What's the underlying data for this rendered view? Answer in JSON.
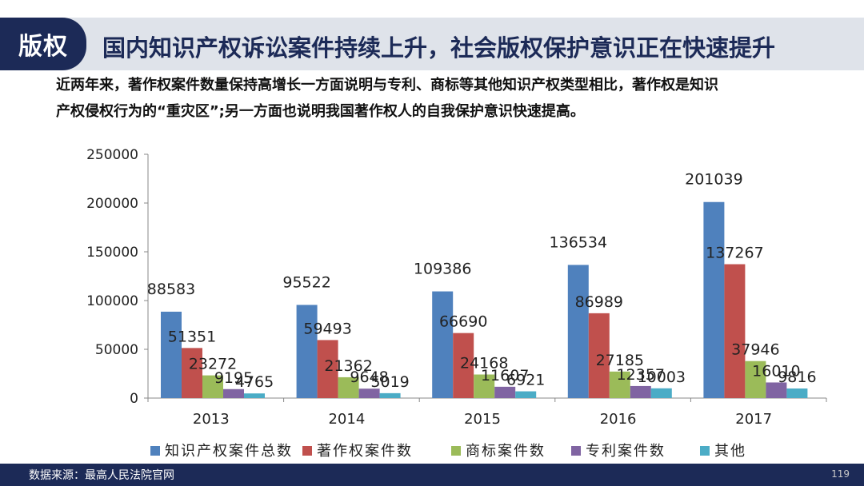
{
  "header": {
    "tag": "版权",
    "title": "国内知识产权诉讼案件持续上升，社会版权保护意识正在快速提升"
  },
  "description": {
    "line1": "近两年来，著作权案件数量保持高增长一方面说明与专利、商标等其他知识产权类型相比，著作权是知识",
    "line2": "产权侵权行为的“重灾区”;另一方面也说明我国著作权人的自我保护意识快速提高。"
  },
  "footer": {
    "source": "数据来源：最高人民法院官网",
    "page": "119"
  },
  "chart_data": {
    "type": "bar",
    "categories": [
      "2013",
      "2014",
      "2015",
      "2016",
      "2017"
    ],
    "series": [
      {
        "name": "知识产权案件总数",
        "color": "#4f81bd",
        "values": [
          88583,
          95522,
          109386,
          136534,
          201039
        ]
      },
      {
        "name": "著作权案件数",
        "color": "#c0504d",
        "values": [
          51351,
          59493,
          66690,
          86989,
          137267
        ]
      },
      {
        "name": "商标案件数",
        "color": "#9bbb59",
        "values": [
          23272,
          21362,
          24168,
          27185,
          37946
        ]
      },
      {
        "name": "专利案件数",
        "color": "#8064a2",
        "values": [
          9195,
          9648,
          11607,
          12357,
          16010
        ]
      },
      {
        "name": "其他",
        "color": "#4bacc6",
        "values": [
          4765,
          5019,
          6921,
          10003,
          9816
        ]
      }
    ],
    "yticks": [
      "0",
      "50000",
      "100000",
      "150000",
      "200000",
      "250000"
    ],
    "ylim": [
      0,
      250000
    ],
    "legend_position": "bottom",
    "grid": false
  }
}
